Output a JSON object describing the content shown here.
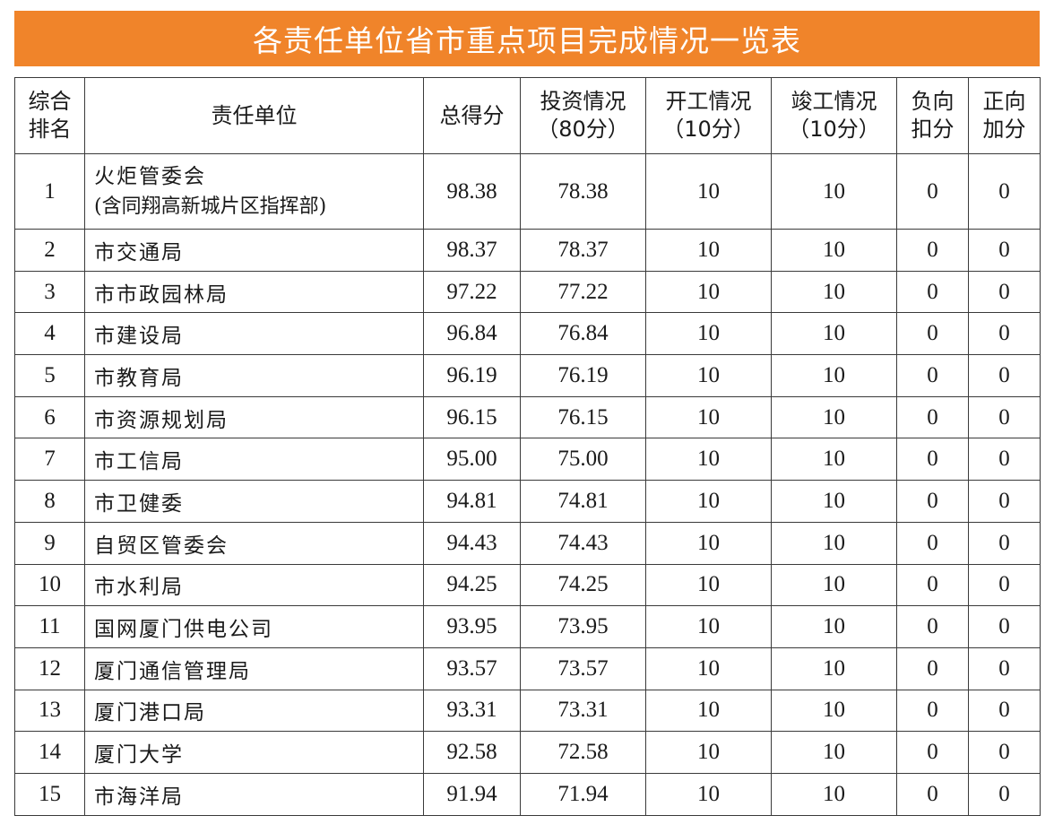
{
  "title": "各责任单位省市重点项目完成情况一览表",
  "headers": {
    "rank": [
      "综合",
      "排名"
    ],
    "unit": "责任单位",
    "total": "总得分",
    "invest": [
      "投资情况",
      "（80分）"
    ],
    "start": [
      "开工情况",
      "（10分）"
    ],
    "finish": [
      "竣工情况",
      "（10分）"
    ],
    "deduct": [
      "负向",
      "扣分"
    ],
    "bonus": [
      "正向",
      "加分"
    ]
  },
  "rows": [
    {
      "rank": "1",
      "unit": "火炬管委会",
      "unit_note": "(含同翔高新城片区指挥部)",
      "total": "98.38",
      "invest": "78.38",
      "start": "10",
      "finish": "10",
      "deduct": "0",
      "bonus": "0"
    },
    {
      "rank": "2",
      "unit": "市交通局",
      "total": "98.37",
      "invest": "78.37",
      "start": "10",
      "finish": "10",
      "deduct": "0",
      "bonus": "0"
    },
    {
      "rank": "3",
      "unit": "市市政园林局",
      "total": "97.22",
      "invest": "77.22",
      "start": "10",
      "finish": "10",
      "deduct": "0",
      "bonus": "0"
    },
    {
      "rank": "4",
      "unit": "市建设局",
      "total": "96.84",
      "invest": "76.84",
      "start": "10",
      "finish": "10",
      "deduct": "0",
      "bonus": "0"
    },
    {
      "rank": "5",
      "unit": "市教育局",
      "total": "96.19",
      "invest": "76.19",
      "start": "10",
      "finish": "10",
      "deduct": "0",
      "bonus": "0"
    },
    {
      "rank": "6",
      "unit": "市资源规划局",
      "total": "96.15",
      "invest": "76.15",
      "start": "10",
      "finish": "10",
      "deduct": "0",
      "bonus": "0"
    },
    {
      "rank": "7",
      "unit": "市工信局",
      "total": "95.00",
      "invest": "75.00",
      "start": "10",
      "finish": "10",
      "deduct": "0",
      "bonus": "0"
    },
    {
      "rank": "8",
      "unit": "市卫健委",
      "total": "94.81",
      "invest": "74.81",
      "start": "10",
      "finish": "10",
      "deduct": "0",
      "bonus": "0"
    },
    {
      "rank": "9",
      "unit": "自贸区管委会",
      "total": "94.43",
      "invest": "74.43",
      "start": "10",
      "finish": "10",
      "deduct": "0",
      "bonus": "0"
    },
    {
      "rank": "10",
      "unit": "市水利局",
      "total": "94.25",
      "invest": "74.25",
      "start": "10",
      "finish": "10",
      "deduct": "0",
      "bonus": "0"
    },
    {
      "rank": "11",
      "unit": "国网厦门供电公司",
      "total": "93.95",
      "invest": "73.95",
      "start": "10",
      "finish": "10",
      "deduct": "0",
      "bonus": "0"
    },
    {
      "rank": "12",
      "unit": "厦门通信管理局",
      "total": "93.57",
      "invest": "73.57",
      "start": "10",
      "finish": "10",
      "deduct": "0",
      "bonus": "0"
    },
    {
      "rank": "13",
      "unit": "厦门港口局",
      "total": "93.31",
      "invest": "73.31",
      "start": "10",
      "finish": "10",
      "deduct": "0",
      "bonus": "0"
    },
    {
      "rank": "14",
      "unit": "厦门大学",
      "total": "92.58",
      "invest": "72.58",
      "start": "10",
      "finish": "10",
      "deduct": "0",
      "bonus": "0"
    },
    {
      "rank": "15",
      "unit": "市海洋局",
      "total": "91.94",
      "invest": "71.94",
      "start": "10",
      "finish": "10",
      "deduct": "0",
      "bonus": "0"
    }
  ]
}
